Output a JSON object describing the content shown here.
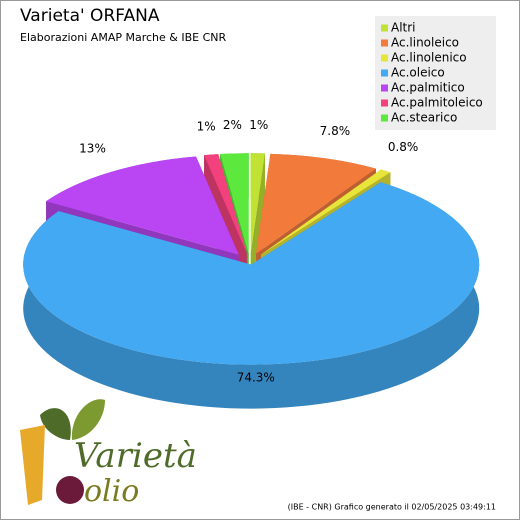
{
  "chart_data": {
    "type": "pie",
    "title": "Varieta' ORFANA",
    "subtitle": "Elaborazioni AMAP Marche & IBE CNR",
    "categories": [
      "Altri",
      "Ac.linoleico",
      "Ac.linolenico",
      "Ac.oleico",
      "Ac.palmitico",
      "Ac.palmitoleico",
      "Ac.stearico"
    ],
    "values": [
      1,
      7.8,
      0.8,
      74.3,
      13,
      1,
      2
    ],
    "value_labels": [
      "1%",
      "7.8%",
      "0.8%",
      "74.3%",
      "13%",
      "1%",
      "2%"
    ],
    "colors": [
      "#bfe233",
      "#f27b3c",
      "#e8e53a",
      "#43a9f2",
      "#b946f2",
      "#f2417c",
      "#5ce83c"
    ],
    "legend": "top-right",
    "footer": "(IBE - CNR) Grafico generato il 02/05/2025 03:49:11"
  },
  "logo": {
    "word1": "Varietà",
    "word2": "olio"
  }
}
